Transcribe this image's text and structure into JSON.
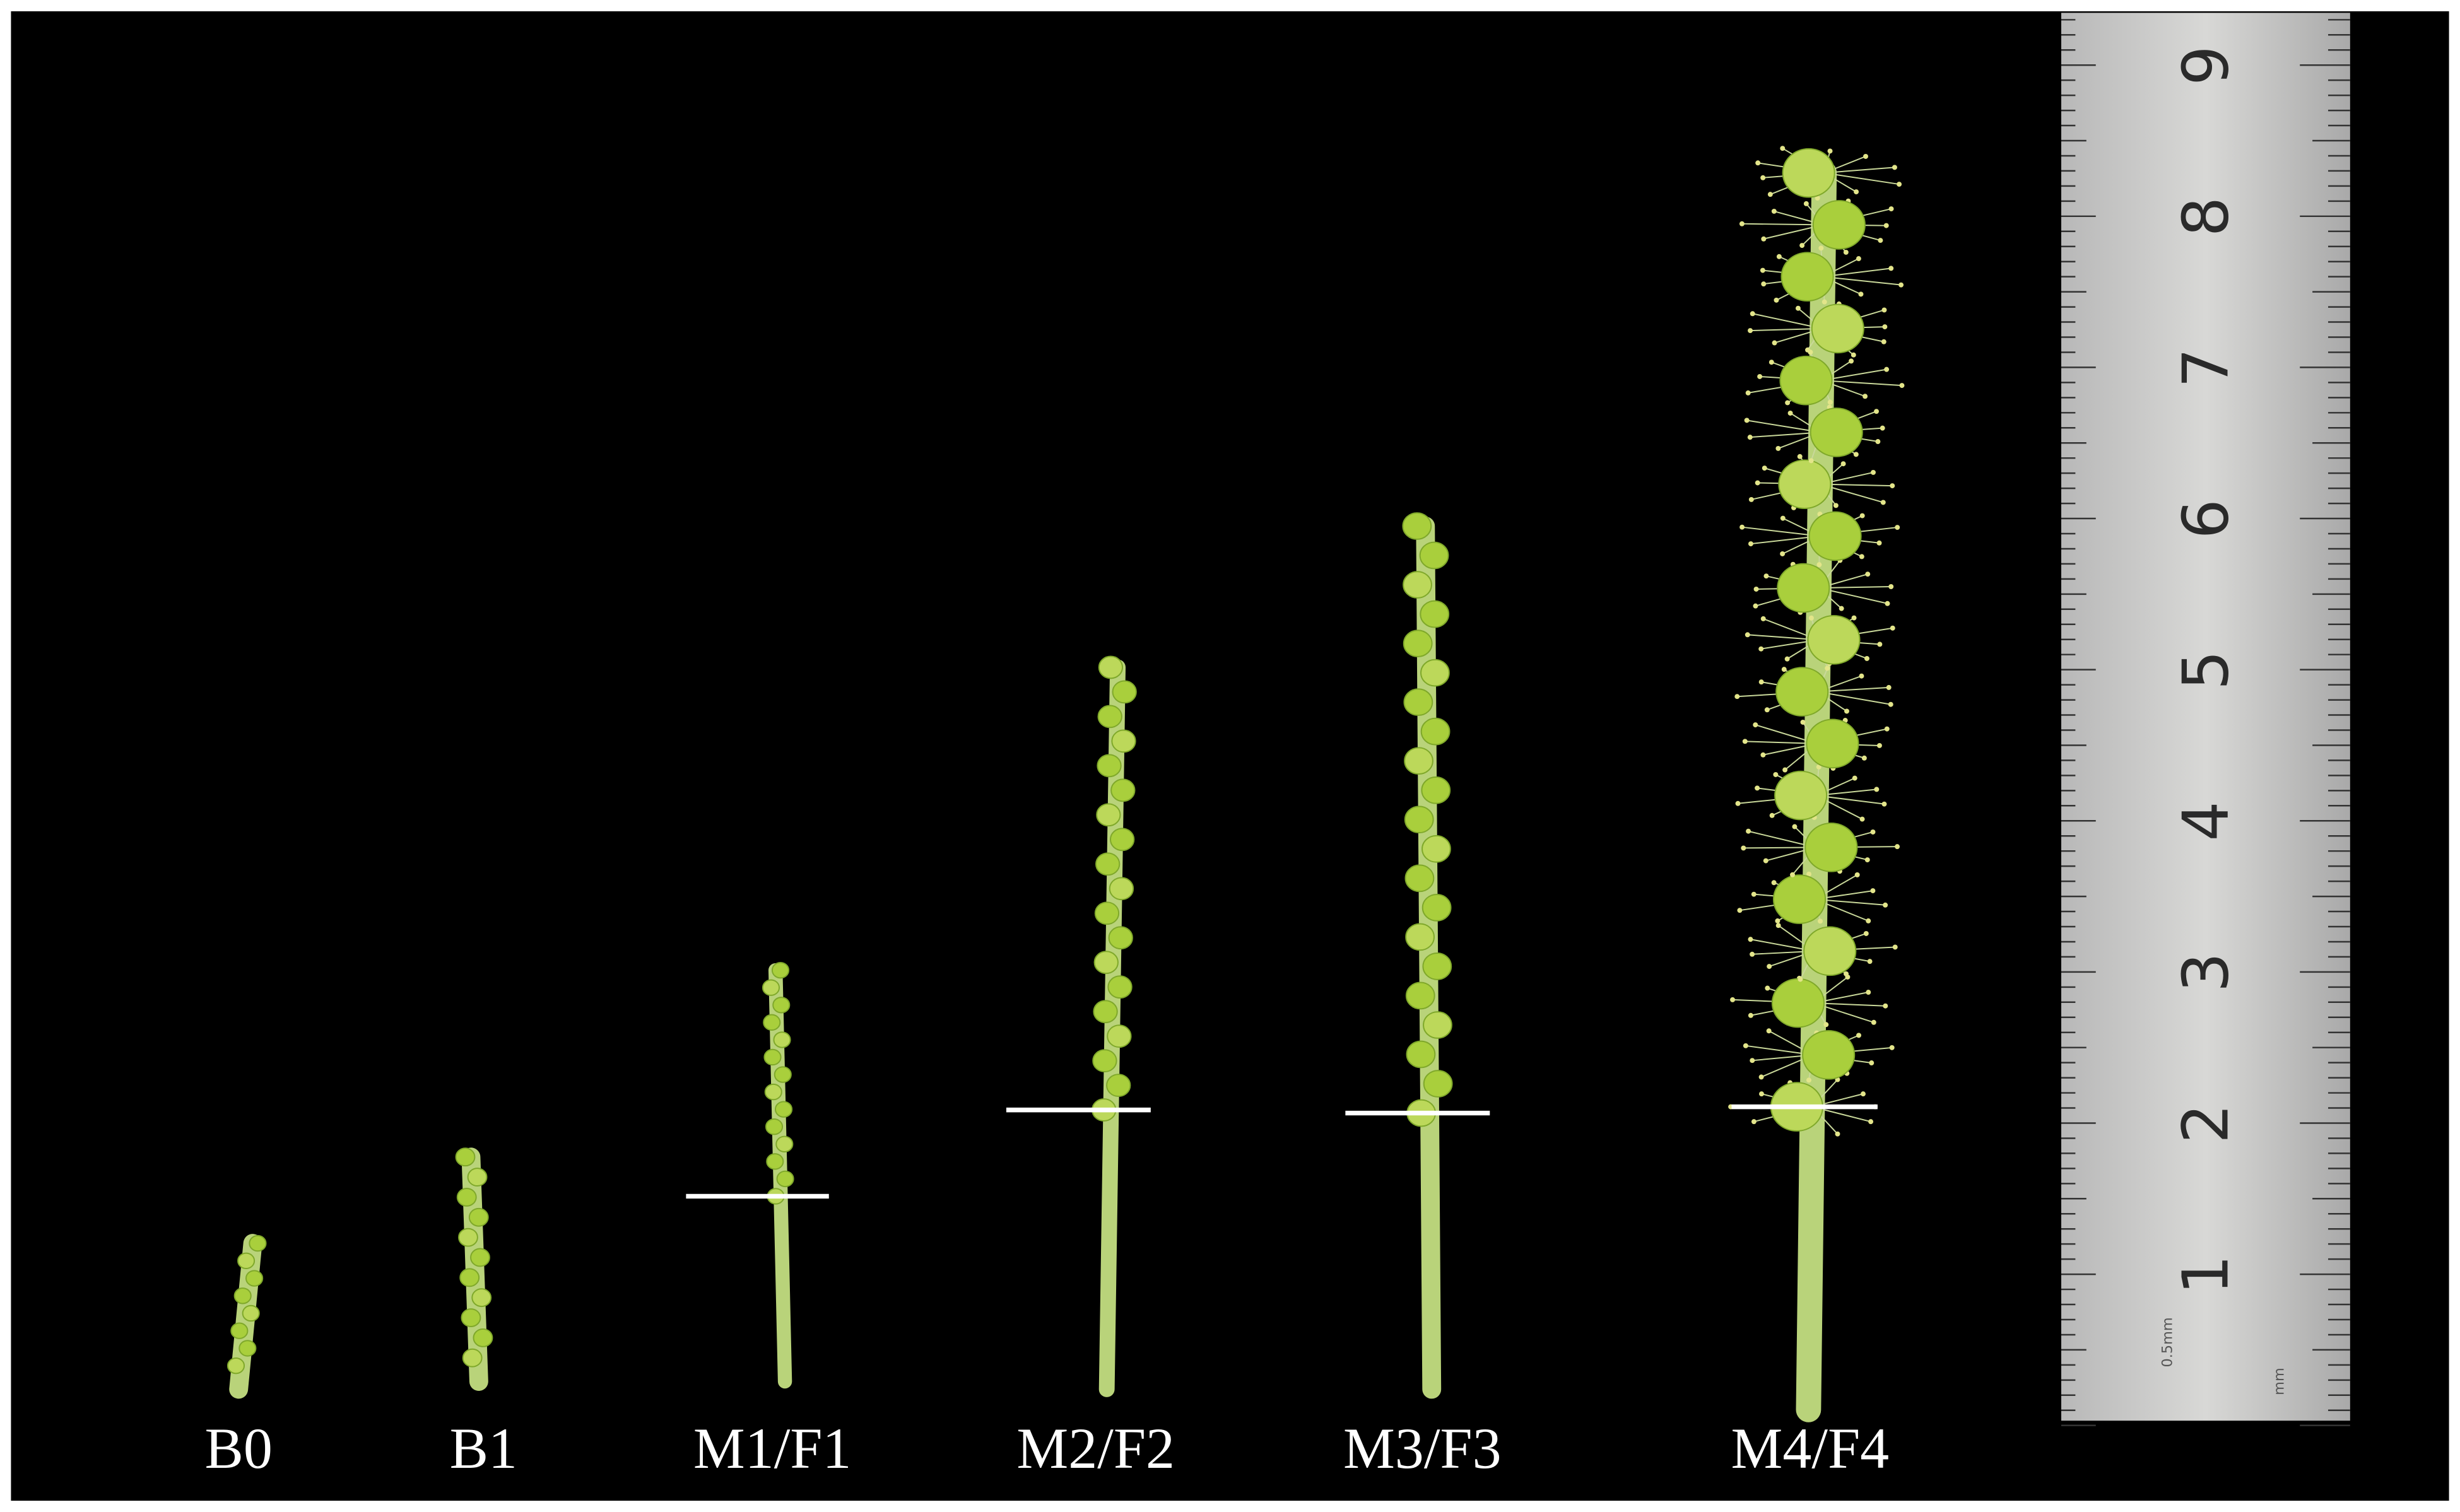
{
  "labels": [
    "B0",
    "B1",
    "M1/F1",
    "M2/F2",
    "M3/F3",
    "M4/F4"
  ],
  "ruler": {
    "numbers": [
      "1",
      "2",
      "3",
      "4",
      "5",
      "6",
      "7",
      "8",
      "9"
    ],
    "highlight_color": "#d42020",
    "small_labels": [
      "0.5mm",
      "mm"
    ]
  }
}
